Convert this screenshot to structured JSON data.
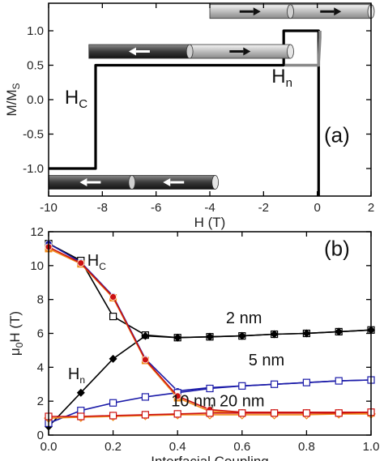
{
  "chart_data": [
    {
      "type": "line",
      "panel_label": "(a)",
      "xlabel": "H (T)",
      "ylabel": "M/M",
      "ylabel_sub": "S",
      "xlim": [
        -10,
        2
      ],
      "ylim": [
        -1.4,
        1.4
      ],
      "x_ticks": [
        -10,
        -8,
        -6,
        -4,
        -2,
        0,
        2
      ],
      "y_ticks": [
        -1.0,
        -0.5,
        0.0,
        0.5,
        1.0
      ],
      "y_tick_labels": [
        "-1.0",
        "-0.5",
        "0.0",
        "0.5",
        "1.0"
      ],
      "grid": false,
      "annotations": [
        {
          "text": "H",
          "sub": "C",
          "x": -9.4,
          "y": -0.06
        },
        {
          "text": "H",
          "sub": "n",
          "x": -1.7,
          "y": 0.25
        }
      ],
      "series": [
        {
          "color": "#000000",
          "x": [
            -10,
            -8.25,
            -8.25,
            -1.25,
            -1.25,
            0.05,
            0.05
          ],
          "y": [
            -1.0,
            -1.0,
            0.5,
            0.5,
            1.0,
            1.0,
            -1.4
          ]
        },
        {
          "color": "#888888",
          "x": [
            -1.2,
            0.05,
            0.05,
            0.1,
            0.1
          ],
          "y": [
            0.5,
            0.5,
            0.55,
            0.9,
            1.0
          ]
        }
      ],
      "magnet_bars": [
        {
          "x0": -4.0,
          "x1": 2.0,
          "y": 1.28,
          "arrows": [
            "right",
            "right"
          ],
          "shade": "light"
        },
        {
          "x0": -8.5,
          "x1": -1.0,
          "y": 0.7,
          "arrows": [
            "left",
            "right"
          ],
          "shade": "mixed"
        },
        {
          "x0": -10.0,
          "x1": -3.8,
          "y": -1.2,
          "arrows": [
            "left",
            "left"
          ],
          "shade": "dark"
        }
      ]
    },
    {
      "type": "line",
      "panel_label": "(b)",
      "xlabel": "Interfacial Coupling",
      "ylabel": "μ",
      "ylabel_sub": "0",
      "ylabel_rest": "H (T)",
      "xlim": [
        0.0,
        1.0
      ],
      "ylim": [
        0,
        12
      ],
      "x_ticks": [
        0.0,
        0.2,
        0.4,
        0.6,
        0.8,
        1.0
      ],
      "x_tick_labels": [
        "0.0",
        "0.2",
        "0.4",
        "0.6",
        "0.8",
        "1.0"
      ],
      "y_ticks": [
        0,
        2,
        4,
        6,
        8,
        10,
        12
      ],
      "y_tick_labels": [
        "0",
        "2",
        "4",
        "6",
        "8",
        "10",
        "12"
      ],
      "grid": false,
      "annotations": [
        {
          "text": "H",
          "sub": "C",
          "x": 0.12,
          "y": 10.0,
          "color": "#000000"
        },
        {
          "text": "H",
          "sub": "n",
          "x": 0.06,
          "y": 3.3,
          "color": "#000000"
        },
        {
          "text": "2 nm",
          "x": 0.55,
          "y": 6.6,
          "color": "#000000"
        },
        {
          "text": "5 nm",
          "x": 0.62,
          "y": 4.1,
          "color": "#1a1aa8"
        },
        {
          "text": "10 nm",
          "x": 0.38,
          "y": 1.7,
          "color": "#f08a1a"
        },
        {
          "text": ", ",
          "x": 0.5,
          "y": 1.7,
          "color": "#000000"
        },
        {
          "text": "20 nm",
          "x": 0.53,
          "y": 1.7,
          "color": "#cc1111"
        }
      ],
      "series": [
        {
          "label": "2 nm Hc",
          "color": "#000000",
          "marker": "open-square",
          "x": [
            0.0,
            0.1,
            0.2,
            0.3,
            0.4,
            0.5,
            0.6,
            0.7,
            0.8,
            0.9,
            1.0
          ],
          "y": [
            11.3,
            10.3,
            7.0,
            5.9,
            5.75,
            5.8,
            5.85,
            5.95,
            6.0,
            6.1,
            6.2
          ]
        },
        {
          "label": "2 nm Hn",
          "color": "#000000",
          "marker": "filled-diamond",
          "x": [
            0.0,
            0.1,
            0.2,
            0.3,
            0.4,
            0.5,
            0.6,
            0.7,
            0.8,
            0.9,
            1.0
          ],
          "y": [
            0.5,
            2.5,
            4.5,
            5.85,
            5.75,
            5.8,
            5.85,
            5.95,
            6.0,
            6.1,
            6.2
          ]
        },
        {
          "label": "5 nm Hc",
          "color": "#1a1aa8",
          "marker": "filled-circle",
          "x": [
            0.0,
            0.1,
            0.2,
            0.3,
            0.4,
            0.5,
            0.6,
            0.7,
            0.8,
            0.9,
            1.0
          ],
          "y": [
            11.3,
            10.2,
            8.2,
            4.5,
            2.6,
            2.8,
            2.9,
            3.0,
            3.1,
            3.2,
            3.25
          ]
        },
        {
          "label": "5 nm Hn",
          "color": "#1a1aa8",
          "marker": "open-square",
          "x": [
            0.0,
            0.1,
            0.2,
            0.3,
            0.4,
            0.5,
            0.6,
            0.7,
            0.8,
            0.9,
            1.0
          ],
          "y": [
            0.7,
            1.45,
            1.9,
            2.25,
            2.5,
            2.75,
            2.9,
            3.0,
            3.1,
            3.2,
            3.25
          ]
        },
        {
          "label": "10 nm Hc",
          "color": "#f08a1a",
          "marker": "filled-square",
          "x": [
            0.0,
            0.1,
            0.2,
            0.3,
            0.4,
            0.5,
            0.6,
            0.7,
            0.8,
            0.9,
            1.0
          ],
          "y": [
            11.0,
            10.1,
            8.1,
            4.4,
            2.2,
            1.4,
            1.3,
            1.3,
            1.3,
            1.3,
            1.3
          ]
        },
        {
          "label": "10 nm Hn",
          "color": "#f08a1a",
          "marker": "open-diamond",
          "x": [
            0.0,
            0.1,
            0.2,
            0.3,
            0.4,
            0.5,
            0.6,
            0.7,
            0.8,
            0.9,
            1.0
          ],
          "y": [
            1.0,
            1.05,
            1.1,
            1.15,
            1.2,
            1.2,
            1.2,
            1.2,
            1.2,
            1.25,
            1.25
          ]
        },
        {
          "label": "20 nm Hc",
          "color": "#cc1111",
          "marker": "filled-circle",
          "x": [
            0.0,
            0.1,
            0.2,
            0.3,
            0.4,
            0.5,
            0.6,
            0.7,
            0.8,
            0.9,
            1.0
          ],
          "y": [
            11.1,
            10.15,
            8.15,
            4.45,
            2.3,
            1.5,
            1.35,
            1.35,
            1.35,
            1.35,
            1.35
          ]
        },
        {
          "label": "20 nm Hn",
          "color": "#cc1111",
          "marker": "open-square",
          "x": [
            0.0,
            0.1,
            0.2,
            0.3,
            0.4,
            0.5,
            0.6,
            0.7,
            0.8,
            0.9,
            1.0
          ],
          "y": [
            1.1,
            1.1,
            1.15,
            1.2,
            1.25,
            1.3,
            1.3,
            1.3,
            1.3,
            1.3,
            1.35
          ]
        }
      ]
    }
  ]
}
